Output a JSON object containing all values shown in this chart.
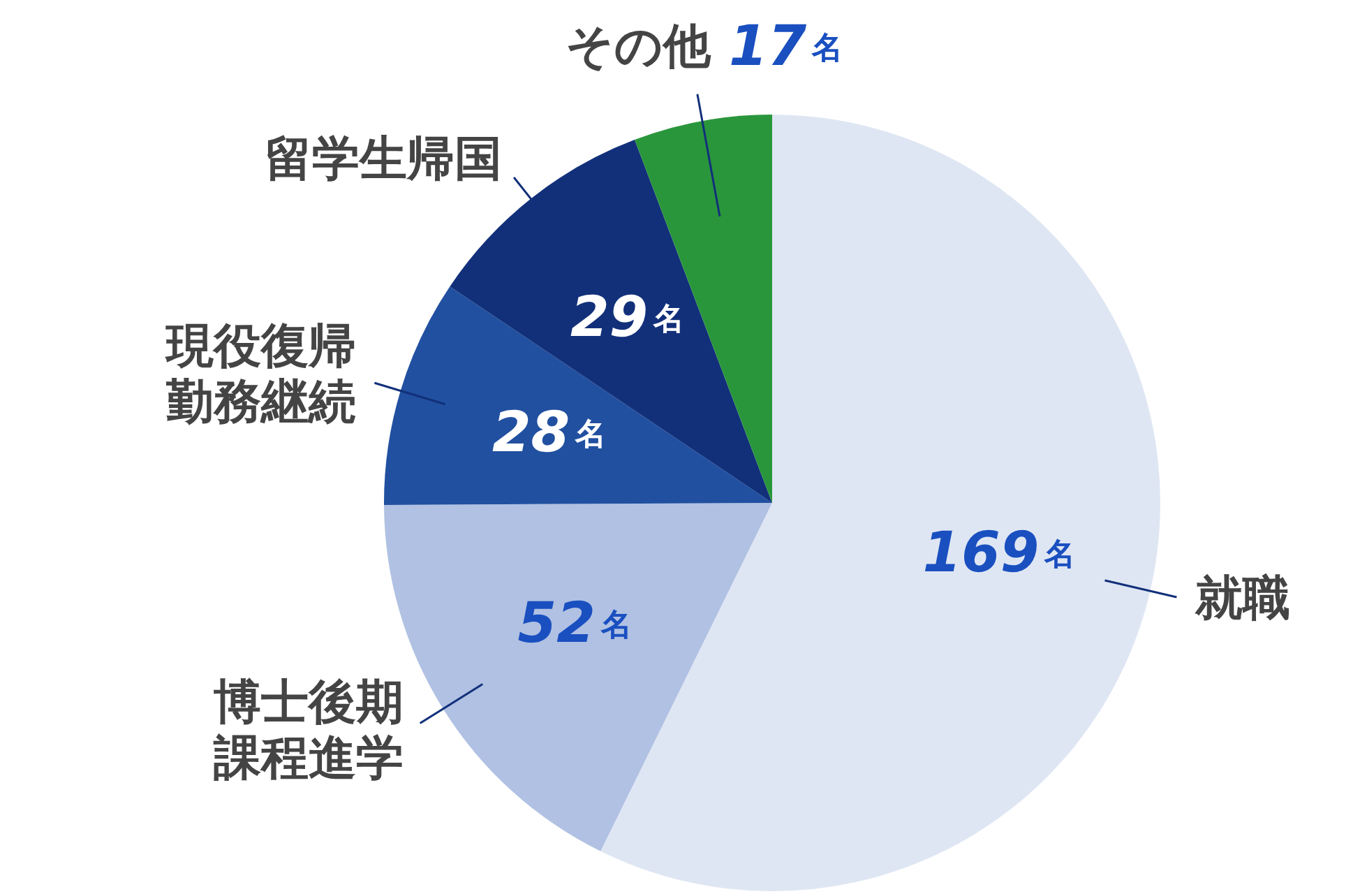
{
  "chart_data": {
    "type": "pie",
    "categories": [
      "就職",
      "博士後期課程進学",
      "現役復帰勤務継続",
      "留学生帰国",
      "その他"
    ],
    "values": [
      169,
      52,
      28,
      29,
      17
    ],
    "colors": [
      "#dfe6f3",
      "#b0c1e3",
      "#2150a0",
      "#12307a",
      "#2a963c"
    ],
    "value_labels": [
      "169名",
      "52名",
      "28名",
      "29名",
      "17名"
    ]
  }
}
